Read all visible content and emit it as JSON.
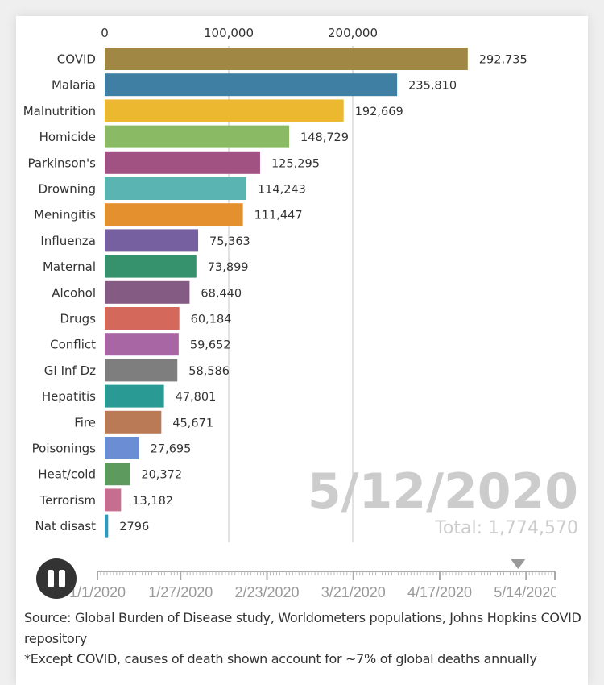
{
  "chart_data": {
    "type": "bar",
    "orientation": "horizontal",
    "title": "",
    "xlabel": "",
    "ylabel": "",
    "xlim": [
      0,
      300000
    ],
    "x_ticks": [
      {
        "value": 0,
        "label": "0"
      },
      {
        "value": 100000,
        "label": "100,000"
      },
      {
        "value": 200000,
        "label": "200,000"
      }
    ],
    "grid": true,
    "categories": [
      "COVID",
      "Malaria",
      "Malnutrition",
      "Homicide",
      "Parkinson's",
      "Drowning",
      "Meningitis",
      "Influenza",
      "Maternal",
      "Alcohol",
      "Drugs",
      "Conflict",
      "GI Inf Dz",
      "Hepatitis",
      "Fire",
      "Poisonings",
      "Heat/cold",
      "Terrorism",
      "Nat disast"
    ],
    "values": [
      292735,
      235810,
      192669,
      148729,
      125295,
      114243,
      111447,
      75363,
      73899,
      68440,
      60184,
      59652,
      58586,
      47801,
      45671,
      27695,
      20372,
      13182,
      2796
    ],
    "value_labels": [
      "292,735",
      "235,810",
      "192,669",
      "148,729",
      "125,295",
      "114,243",
      "111,447",
      "75,363",
      "73,899",
      "68,440",
      "60,184",
      "59,652",
      "58,586",
      "47,801",
      "45,671",
      "27,695",
      "20,372",
      "13,182",
      "2796"
    ],
    "colors": [
      "#a08744",
      "#3f7fa3",
      "#ebb830",
      "#8abb64",
      "#a25282",
      "#5ab4b2",
      "#e5902f",
      "#7760a0",
      "#35926c",
      "#845b82",
      "#d4685b",
      "#a866a4",
      "#7e7e7e",
      "#2a9a94",
      "#bb7a56",
      "#6b8dd3",
      "#5d9a5e",
      "#c76e90",
      "#3498b8"
    ],
    "annotation_date": "5/12/2020",
    "annotation_total": "Total: 1,774,570"
  },
  "timeline": {
    "start_day": 0,
    "end_day": 143,
    "current_day": 131.5,
    "labels": [
      {
        "day": 0,
        "text": "1/1/2020"
      },
      {
        "day": 26,
        "text": "1/27/2020"
      },
      {
        "day": 53,
        "text": "2/23/2020"
      },
      {
        "day": 80,
        "text": "3/21/2020"
      },
      {
        "day": 107,
        "text": "4/17/2020"
      },
      {
        "day": 134,
        "text": "5/14/2020"
      }
    ],
    "play_state": "playing",
    "button_icon": "pause-icon"
  },
  "footer": {
    "source": "Source: Global Burden of Disease study, Worldometers populations, Johns Hopkins COVID repository",
    "note": "*Except COVID, causes of death shown account for ~7% of global deaths annually"
  }
}
